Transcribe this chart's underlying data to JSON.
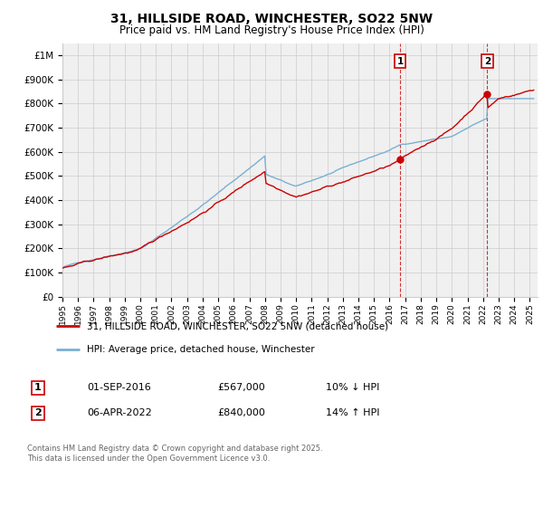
{
  "title": "31, HILLSIDE ROAD, WINCHESTER, SO22 5NW",
  "subtitle": "Price paid vs. HM Land Registry's House Price Index (HPI)",
  "ylabel_ticks": [
    "£0",
    "£100K",
    "£200K",
    "£300K",
    "£400K",
    "£500K",
    "£600K",
    "£700K",
    "£800K",
    "£900K",
    "£1M"
  ],
  "ytick_vals": [
    0,
    100000,
    200000,
    300000,
    400000,
    500000,
    600000,
    700000,
    800000,
    900000,
    1000000
  ],
  "ylim": [
    0,
    1050000
  ],
  "year_start": 1995,
  "year_end": 2025,
  "sale1_date": 2016.67,
  "sale1_price": 567000,
  "sale2_date": 2022.27,
  "sale2_price": 840000,
  "legend_line1": "31, HILLSIDE ROAD, WINCHESTER, SO22 5NW (detached house)",
  "legend_line2": "HPI: Average price, detached house, Winchester",
  "table_row1": [
    "1",
    "01-SEP-2016",
    "£567,000",
    "10% ↓ HPI"
  ],
  "table_row2": [
    "2",
    "06-APR-2022",
    "£840,000",
    "14% ↑ HPI"
  ],
  "footer": "Contains HM Land Registry data © Crown copyright and database right 2025.\nThis data is licensed under the Open Government Licence v3.0.",
  "line_color_red": "#cc0000",
  "line_color_blue": "#7ab0d4",
  "bg_color": "#f0f0f0",
  "grid_color": "#cccccc"
}
